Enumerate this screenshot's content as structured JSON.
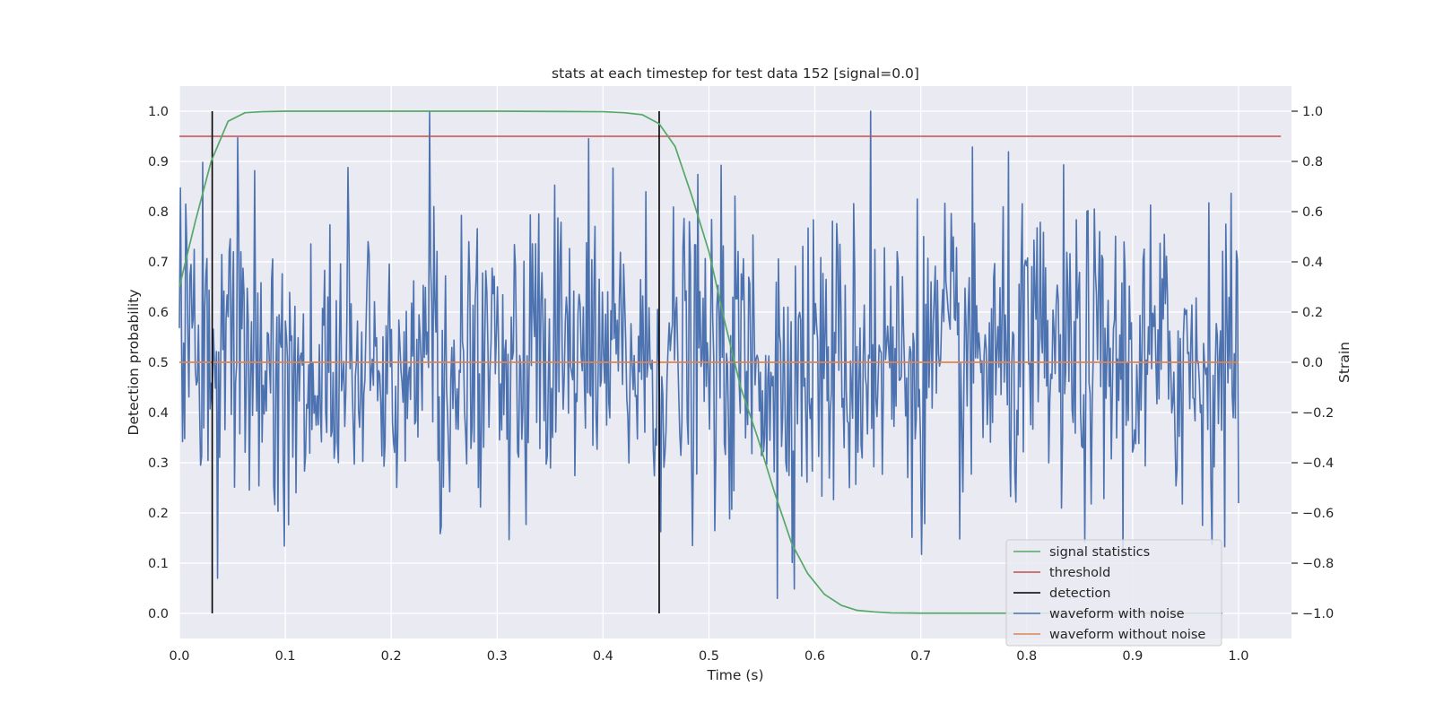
{
  "chart_data": {
    "type": "line",
    "title": "stats at each timestep for test data 152 [signal=0.0]",
    "xlabel": "Time (s)",
    "ylabel_left": "Detection probability",
    "ylabel_right": "Strain",
    "xlim": [
      0.0,
      1.05
    ],
    "ylim_left": [
      -0.05,
      1.05
    ],
    "ylim_right": [
      -1.1,
      1.1
    ],
    "x_ticks": [
      "0.0",
      "0.1",
      "0.2",
      "0.3",
      "0.4",
      "0.5",
      "0.6",
      "0.7",
      "0.8",
      "0.9",
      "1.0"
    ],
    "y_ticks_left": [
      "0.0",
      "0.1",
      "0.2",
      "0.3",
      "0.4",
      "0.5",
      "0.6",
      "0.7",
      "0.8",
      "0.9",
      "1.0"
    ],
    "y_ticks_right": [
      "−1.0",
      "−0.8",
      "−0.6",
      "−0.4",
      "−0.2",
      "0.0",
      "0.2",
      "0.4",
      "0.6",
      "0.8",
      "1.0"
    ],
    "grid": true,
    "legend_position": "lower-right",
    "colors": {
      "plot_bg": "#eaeaf2",
      "grid": "#ffffff",
      "signal_statistics": "#55a868",
      "threshold": "#c44e52",
      "detection": "#000000",
      "waveform_with_noise": "#4c72b0",
      "waveform_without_noise": "#dd8452"
    },
    "legend": [
      "signal statistics",
      "threshold",
      "detection",
      "waveform with noise",
      "waveform without noise"
    ],
    "series": [
      {
        "name": "signal statistics",
        "axis": "left",
        "x": [
          0.0,
          0.015,
          0.03,
          0.046,
          0.062,
          0.078,
          0.1,
          0.2,
          0.3,
          0.4,
          0.42,
          0.437,
          0.453,
          0.468,
          0.484,
          0.5,
          0.515,
          0.53,
          0.546,
          0.562,
          0.578,
          0.593,
          0.609,
          0.625,
          0.64,
          0.656,
          0.672,
          0.7,
          0.8,
          0.9,
          0.985
        ],
        "values": [
          0.65,
          0.78,
          0.9,
          0.98,
          0.997,
          0.999,
          1.0,
          1.0,
          1.0,
          0.999,
          0.997,
          0.993,
          0.975,
          0.93,
          0.83,
          0.72,
          0.58,
          0.45,
          0.35,
          0.24,
          0.14,
          0.08,
          0.038,
          0.016,
          0.006,
          0.003,
          0.001,
          0.0005,
          0.0003,
          0.0003,
          0.0003
        ]
      },
      {
        "name": "threshold",
        "axis": "left",
        "x": [
          0.0,
          1.04
        ],
        "values": [
          0.95,
          0.95
        ]
      },
      {
        "name": "detection",
        "axis": "left",
        "segments": [
          {
            "x": 0.031,
            "y0": 0.0,
            "y1": 1.0
          },
          {
            "x": 0.453,
            "y0": 0.0,
            "y1": 1.0
          }
        ]
      },
      {
        "name": "waveform with noise",
        "axis": "right",
        "x_start": 0.0,
        "x_end": 1.0,
        "n_points": 1000,
        "approx_std": 0.3,
        "peaks": [
          {
            "x": 0.236,
            "y": 1.0
          },
          {
            "x": 0.653,
            "y": 1.0
          },
          {
            "x": 0.565,
            "y": -0.94
          },
          {
            "x": 0.036,
            "y": -0.86
          }
        ]
      },
      {
        "name": "waveform without noise",
        "axis": "right",
        "x": [
          0.0,
          1.0
        ],
        "values": [
          0.0,
          0.0
        ]
      }
    ]
  }
}
